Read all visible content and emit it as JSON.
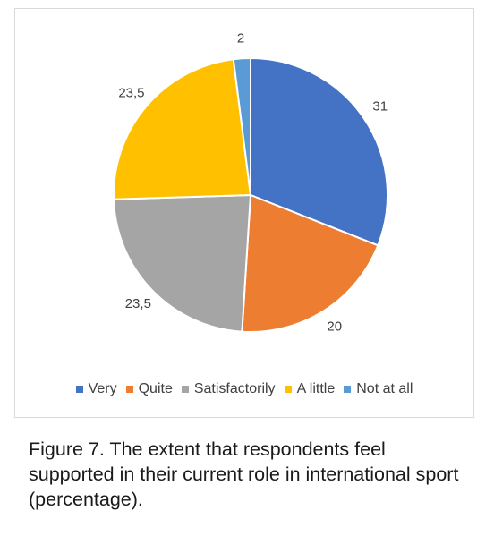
{
  "chart_data": {
    "type": "pie",
    "categories": [
      "Very",
      "Quite",
      "Satisfactorily",
      "A little",
      "Not at all"
    ],
    "values": [
      31,
      20,
      23.5,
      23.5,
      2
    ],
    "value_labels": [
      "31",
      "20",
      "23,5",
      "23,5",
      "2"
    ],
    "colors": [
      "#4472C4",
      "#ED7D31",
      "#A5A5A5",
      "#FFC000",
      "#5B9BD5"
    ],
    "legend_position": "bottom",
    "start_angle_deg": 0,
    "direction": "clockwise"
  },
  "caption": "Figure 7. The extent that respondents feel supported in their current role in international sport (percentage)."
}
